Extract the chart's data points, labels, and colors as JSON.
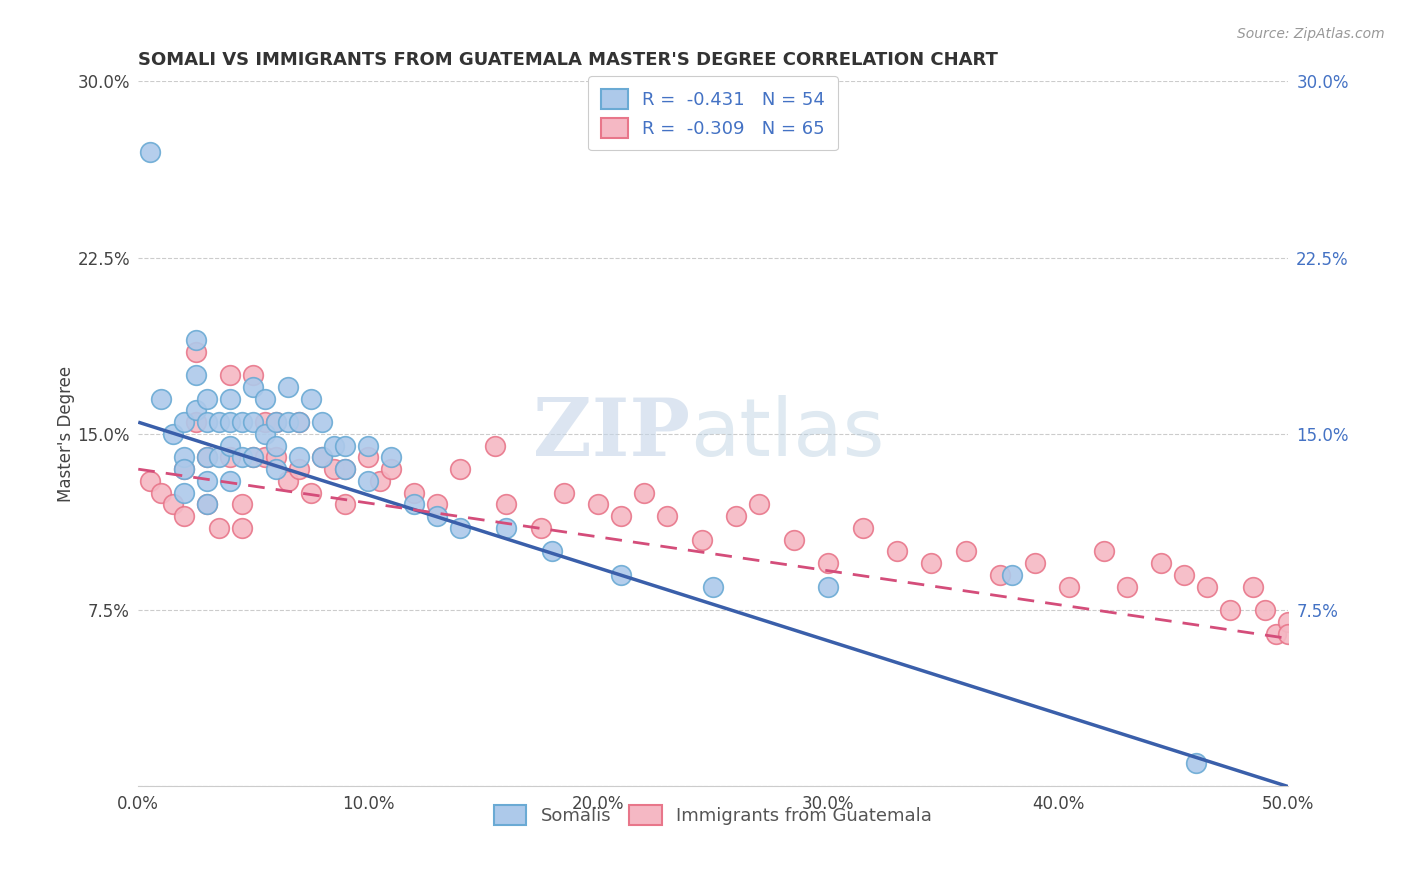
{
  "title": "SOMALI VS IMMIGRANTS FROM GUATEMALA MASTER'S DEGREE CORRELATION CHART",
  "source": "Source: ZipAtlas.com",
  "ylabel": "Master's Degree",
  "xlim": [
    0.0,
    0.5
  ],
  "ylim": [
    0.0,
    0.3
  ],
  "xticks": [
    0.0,
    0.1,
    0.2,
    0.3,
    0.4,
    0.5
  ],
  "yticks": [
    0.0,
    0.075,
    0.15,
    0.225,
    0.3
  ],
  "xtick_labels": [
    "0.0%",
    "10.0%",
    "20.0%",
    "30.0%",
    "40.0%",
    "50.0%"
  ],
  "ytick_labels_left": [
    "",
    "7.5%",
    "15.0%",
    "22.5%",
    "30.0%"
  ],
  "ytick_labels_right": [
    "",
    "7.5%",
    "15.0%",
    "22.5%",
    "30.0%"
  ],
  "somali_color": "#adc9ea",
  "somali_edge_color": "#6aaad4",
  "guatemala_color": "#f5b8c4",
  "guatemala_edge_color": "#e8768a",
  "trend_somali_color": "#3a5faa",
  "trend_guatemala_color": "#d44d7a",
  "legend_label_somali": "Somalis",
  "legend_label_guatemala": "Immigrants from Guatemala",
  "R_somali": -0.431,
  "N_somali": 54,
  "R_guatemala": -0.309,
  "N_guatemala": 65,
  "watermark_ZIP": "ZIP",
  "watermark_atlas": "atlas",
  "somali_x": [
    0.005,
    0.01,
    0.015,
    0.02,
    0.02,
    0.02,
    0.02,
    0.025,
    0.025,
    0.025,
    0.03,
    0.03,
    0.03,
    0.03,
    0.03,
    0.035,
    0.035,
    0.04,
    0.04,
    0.04,
    0.04,
    0.045,
    0.045,
    0.05,
    0.05,
    0.05,
    0.055,
    0.055,
    0.06,
    0.06,
    0.06,
    0.065,
    0.065,
    0.07,
    0.07,
    0.075,
    0.08,
    0.08,
    0.085,
    0.09,
    0.09,
    0.1,
    0.1,
    0.11,
    0.12,
    0.13,
    0.14,
    0.16,
    0.18,
    0.21,
    0.25,
    0.3,
    0.38,
    0.46
  ],
  "somali_y": [
    0.27,
    0.165,
    0.15,
    0.155,
    0.14,
    0.135,
    0.125,
    0.19,
    0.175,
    0.16,
    0.165,
    0.155,
    0.14,
    0.13,
    0.12,
    0.155,
    0.14,
    0.165,
    0.155,
    0.145,
    0.13,
    0.155,
    0.14,
    0.17,
    0.155,
    0.14,
    0.165,
    0.15,
    0.155,
    0.145,
    0.135,
    0.17,
    0.155,
    0.155,
    0.14,
    0.165,
    0.155,
    0.14,
    0.145,
    0.145,
    0.135,
    0.145,
    0.13,
    0.14,
    0.12,
    0.115,
    0.11,
    0.11,
    0.1,
    0.09,
    0.085,
    0.085,
    0.09,
    0.01
  ],
  "guatemala_x": [
    0.005,
    0.01,
    0.015,
    0.02,
    0.02,
    0.025,
    0.025,
    0.03,
    0.03,
    0.035,
    0.04,
    0.04,
    0.045,
    0.045,
    0.05,
    0.05,
    0.055,
    0.055,
    0.06,
    0.06,
    0.065,
    0.07,
    0.07,
    0.075,
    0.08,
    0.085,
    0.09,
    0.09,
    0.1,
    0.105,
    0.11,
    0.12,
    0.13,
    0.14,
    0.155,
    0.16,
    0.175,
    0.185,
    0.2,
    0.21,
    0.22,
    0.23,
    0.245,
    0.26,
    0.27,
    0.285,
    0.3,
    0.315,
    0.33,
    0.345,
    0.36,
    0.375,
    0.39,
    0.405,
    0.42,
    0.43,
    0.445,
    0.455,
    0.465,
    0.475,
    0.485,
    0.49,
    0.495,
    0.5,
    0.5
  ],
  "guatemala_y": [
    0.13,
    0.125,
    0.12,
    0.135,
    0.115,
    0.185,
    0.155,
    0.14,
    0.12,
    0.11,
    0.175,
    0.14,
    0.12,
    0.11,
    0.175,
    0.14,
    0.155,
    0.14,
    0.155,
    0.14,
    0.13,
    0.155,
    0.135,
    0.125,
    0.14,
    0.135,
    0.135,
    0.12,
    0.14,
    0.13,
    0.135,
    0.125,
    0.12,
    0.135,
    0.145,
    0.12,
    0.11,
    0.125,
    0.12,
    0.115,
    0.125,
    0.115,
    0.105,
    0.115,
    0.12,
    0.105,
    0.095,
    0.11,
    0.1,
    0.095,
    0.1,
    0.09,
    0.095,
    0.085,
    0.1,
    0.085,
    0.095,
    0.09,
    0.085,
    0.075,
    0.085,
    0.075,
    0.065,
    0.07,
    0.065
  ],
  "trend_somali_x0": 0.0,
  "trend_somali_y0": 0.155,
  "trend_somali_x1": 0.5,
  "trend_somali_y1": 0.0,
  "trend_guatemala_x0": 0.0,
  "trend_guatemala_y0": 0.135,
  "trend_guatemala_x1": 0.5,
  "trend_guatemala_y1": 0.063
}
